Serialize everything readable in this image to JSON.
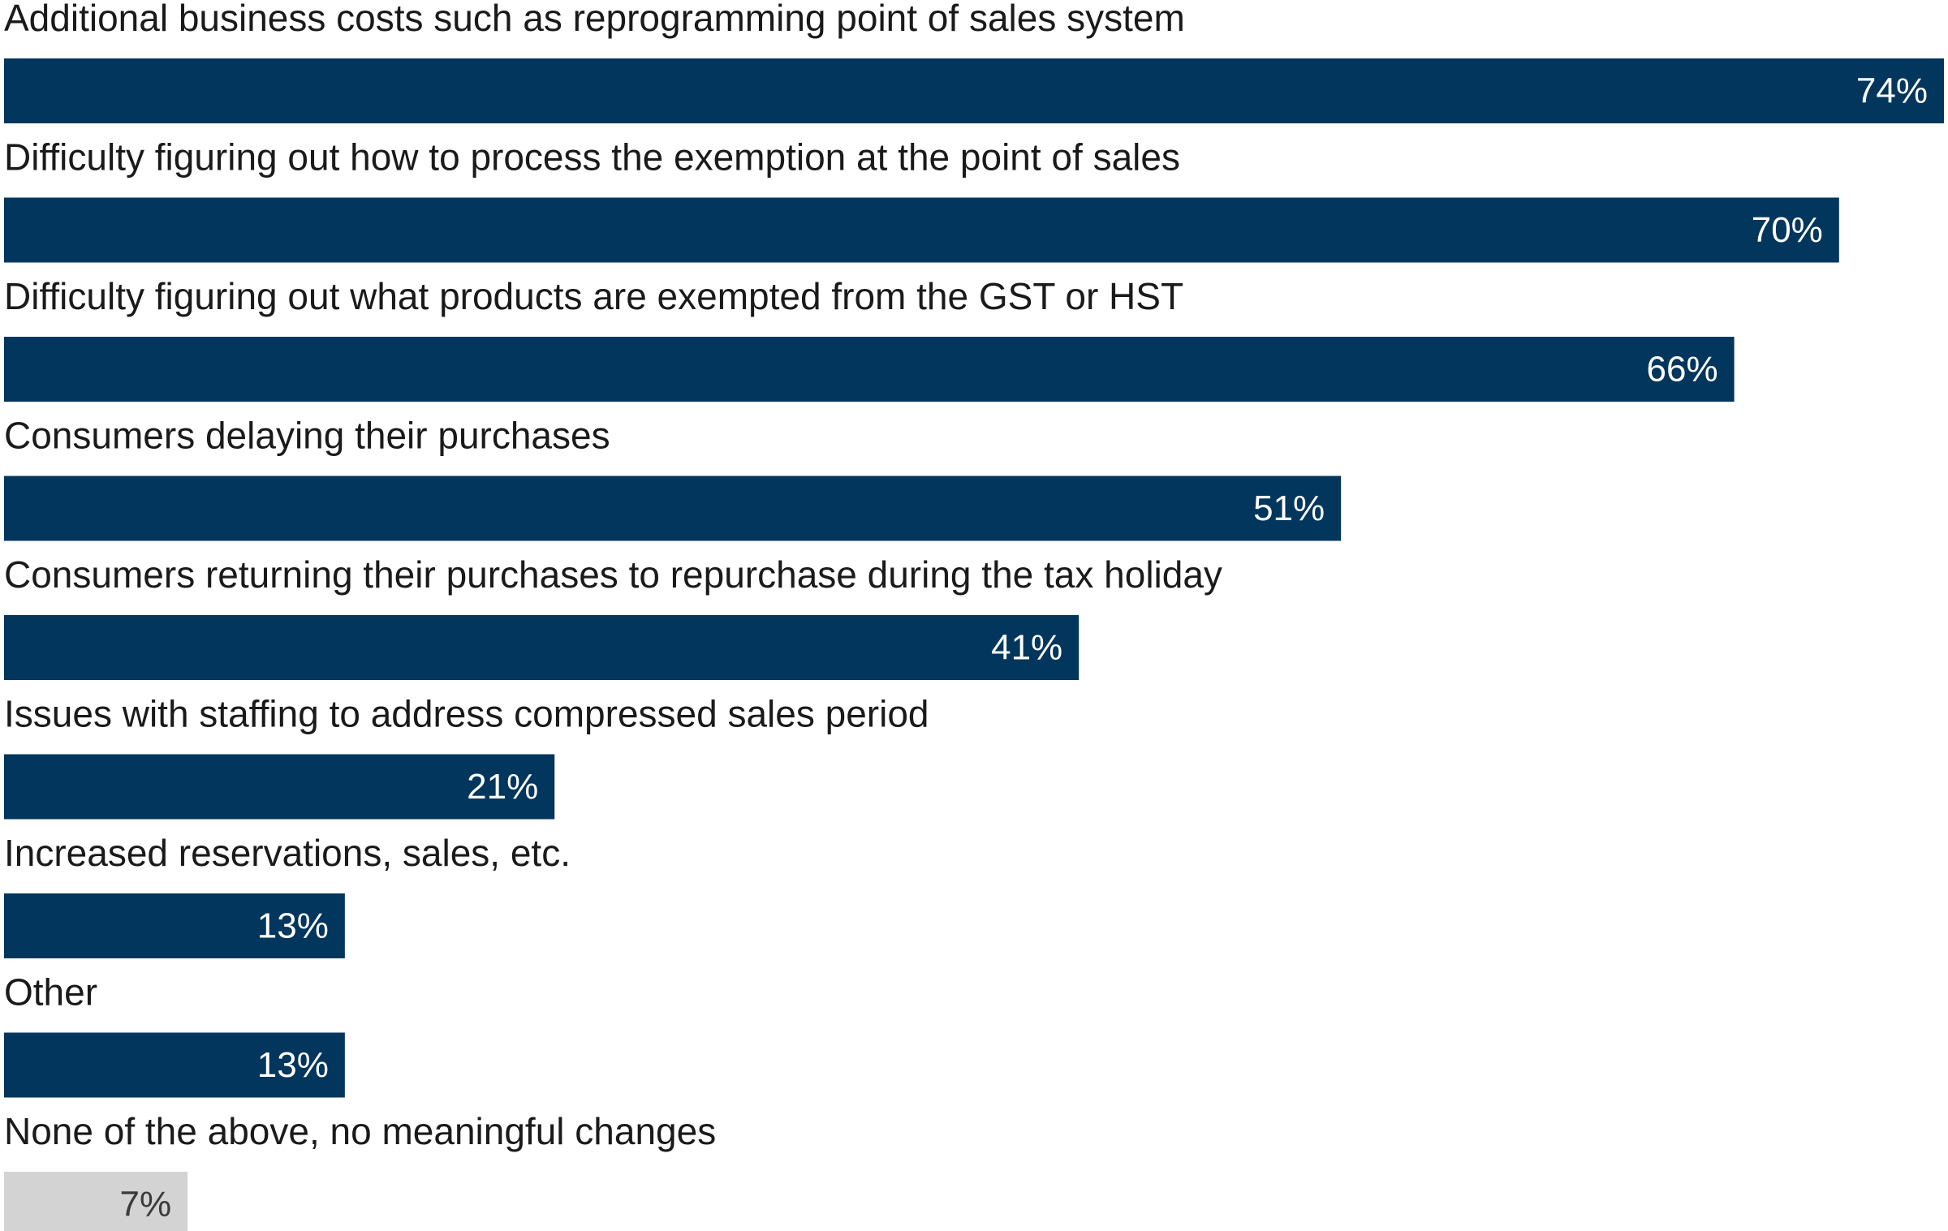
{
  "chart_data": {
    "type": "bar",
    "orientation": "horizontal",
    "title": "",
    "xlabel": "",
    "ylabel": "",
    "xlim": [
      0,
      74
    ],
    "grid": false,
    "legend": "none",
    "value_suffix": "%",
    "colors": {
      "primary": "#02365c",
      "muted": "#d3d3d3",
      "label_on_primary": "#ffffff",
      "label_on_muted": "#3a3a3a",
      "category_text": "#1a1a1a"
    },
    "categories": [
      "Additional business costs such as reprogramming point of sales system",
      "Difficulty figuring out how to process the exemption at the point of sales",
      "Difficulty figuring out what products are exempted from the GST or HST",
      "Consumers delaying their purchases",
      "Consumers returning their purchases to repurchase during the tax holiday",
      "Issues with staffing to address compressed sales period",
      "Increased reservations, sales, etc.",
      "Other",
      "None of the above, no meaningful changes"
    ],
    "values": [
      74,
      70,
      66,
      51,
      41,
      21,
      13,
      13,
      7
    ],
    "value_labels": [
      "74%",
      "70%",
      "66%",
      "51%",
      "41%",
      "21%",
      "13%",
      "13%",
      "7%"
    ],
    "bar_colors": [
      "primary",
      "primary",
      "primary",
      "primary",
      "primary",
      "primary",
      "primary",
      "primary",
      "muted"
    ]
  }
}
